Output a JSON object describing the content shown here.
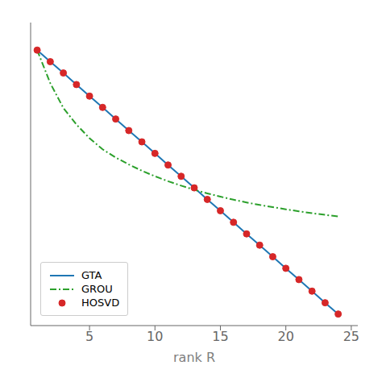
{
  "chart_data": {
    "type": "line",
    "x": [
      1,
      2,
      3,
      4,
      5,
      6,
      7,
      8,
      9,
      10,
      11,
      12,
      13,
      14,
      15,
      16,
      17,
      18,
      19,
      20,
      21,
      22,
      23,
      24
    ],
    "xlabel": "rank R",
    "xlim": [
      0.5,
      25.5
    ],
    "xticks": [
      5,
      10,
      15,
      20,
      25
    ],
    "ylim": [
      0,
      1.1
    ],
    "tick_labels": "x",
    "grid": false,
    "legend": "lower left",
    "series": [
      {
        "name": "GTA",
        "color": "#1f77b4",
        "line_style": "solid",
        "values": [
          1.0,
          0.958,
          0.917,
          0.875,
          0.833,
          0.792,
          0.75,
          0.708,
          0.667,
          0.625,
          0.583,
          0.542,
          0.5,
          0.458,
          0.417,
          0.375,
          0.333,
          0.292,
          0.25,
          0.208,
          0.167,
          0.125,
          0.083,
          0.042
        ]
      },
      {
        "name": "GROU",
        "color": "#2ca02c",
        "line_style": "dashdot",
        "values": [
          1.0,
          0.88,
          0.79,
          0.73,
          0.68,
          0.64,
          0.61,
          0.585,
          0.562,
          0.542,
          0.524,
          0.508,
          0.493,
          0.48,
          0.468,
          0.457,
          0.447,
          0.438,
          0.43,
          0.422,
          0.415,
          0.408,
          0.402,
          0.396
        ]
      },
      {
        "name": "HOSVD",
        "color": "#d62728",
        "marker": "o",
        "line_style": "none",
        "values": [
          1.0,
          0.958,
          0.917,
          0.875,
          0.833,
          0.792,
          0.75,
          0.708,
          0.667,
          0.625,
          0.583,
          0.542,
          0.5,
          0.458,
          0.417,
          0.375,
          0.333,
          0.292,
          0.25,
          0.208,
          0.167,
          0.125,
          0.083,
          0.042
        ]
      }
    ]
  }
}
